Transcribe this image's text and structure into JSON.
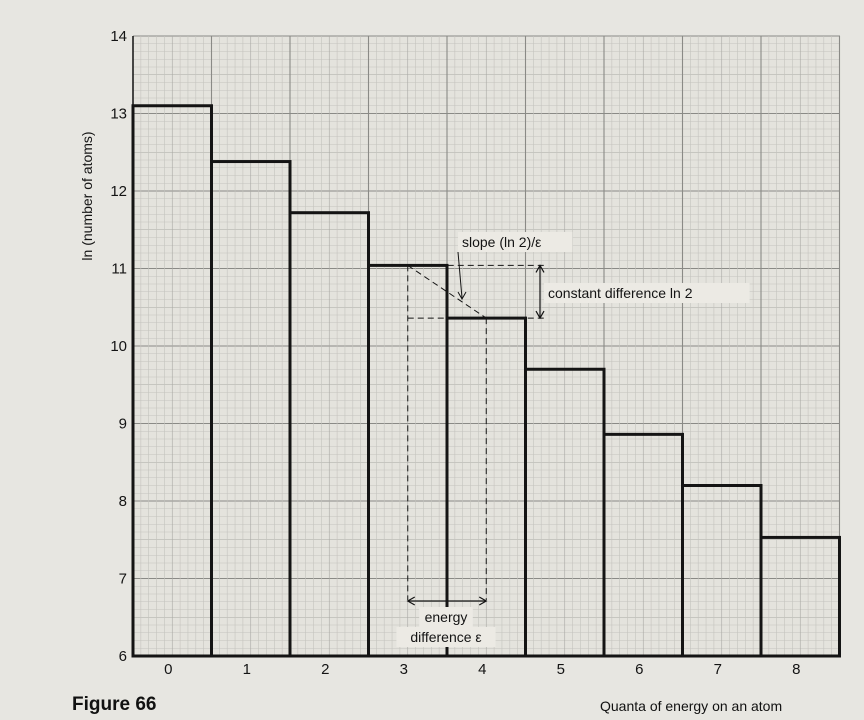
{
  "figure_label": "Figure 66",
  "chart_data": {
    "type": "bar",
    "categories": [
      "0",
      "1",
      "2",
      "3",
      "4",
      "5",
      "6",
      "7",
      "8"
    ],
    "values": [
      13.1,
      12.38,
      11.72,
      11.04,
      10.36,
      9.7,
      8.86,
      8.2,
      7.53
    ],
    "xlabel": "Quanta of energy on an atom",
    "ylabel": "ln (number of atoms)",
    "ylim": [
      6,
      14
    ],
    "yticks": [
      "6",
      "7",
      "8",
      "9",
      "10",
      "11",
      "12",
      "13",
      "14"
    ],
    "grid": true,
    "annotations": {
      "slope": "slope (ln 2)/ε",
      "constant_difference": "constant difference   ln 2",
      "energy_difference_line1": "energy",
      "energy_difference_line2": "difference ε"
    }
  }
}
